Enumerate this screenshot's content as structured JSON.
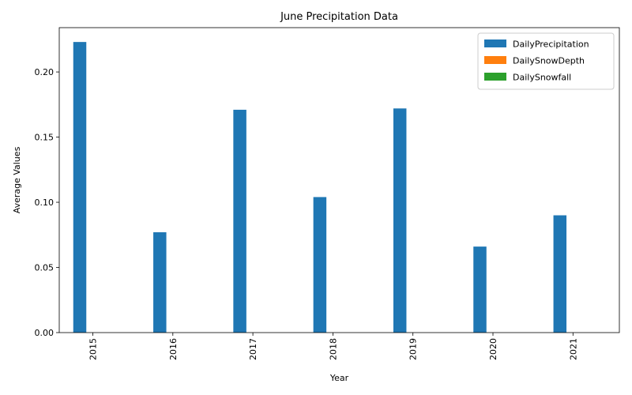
{
  "chart_data": {
    "type": "bar",
    "title": "June Precipitation Data",
    "xlabel": "Year",
    "ylabel": "Average Values",
    "categories": [
      "2015",
      "2016",
      "2017",
      "2018",
      "2019",
      "2020",
      "2021"
    ],
    "series": [
      {
        "name": "DailyPrecipitation",
        "color": "#1f77b4",
        "values": [
          0.223,
          0.077,
          0.171,
          0.104,
          0.172,
          0.066,
          0.09
        ]
      },
      {
        "name": "DailySnowDepth",
        "color": "#ff7f0e",
        "values": [
          0,
          0,
          0,
          0,
          0,
          0,
          0
        ]
      },
      {
        "name": "DailySnowfall",
        "color": "#2ca02c",
        "values": [
          0,
          0,
          0,
          0,
          0,
          0,
          0
        ]
      }
    ],
    "ylim": [
      0,
      0.234
    ],
    "yticks": [
      "0.00",
      "0.05",
      "0.10",
      "0.15",
      "0.20"
    ],
    "grid": false,
    "legend_position": "top-right",
    "x_tick_rotation": "vertical"
  }
}
